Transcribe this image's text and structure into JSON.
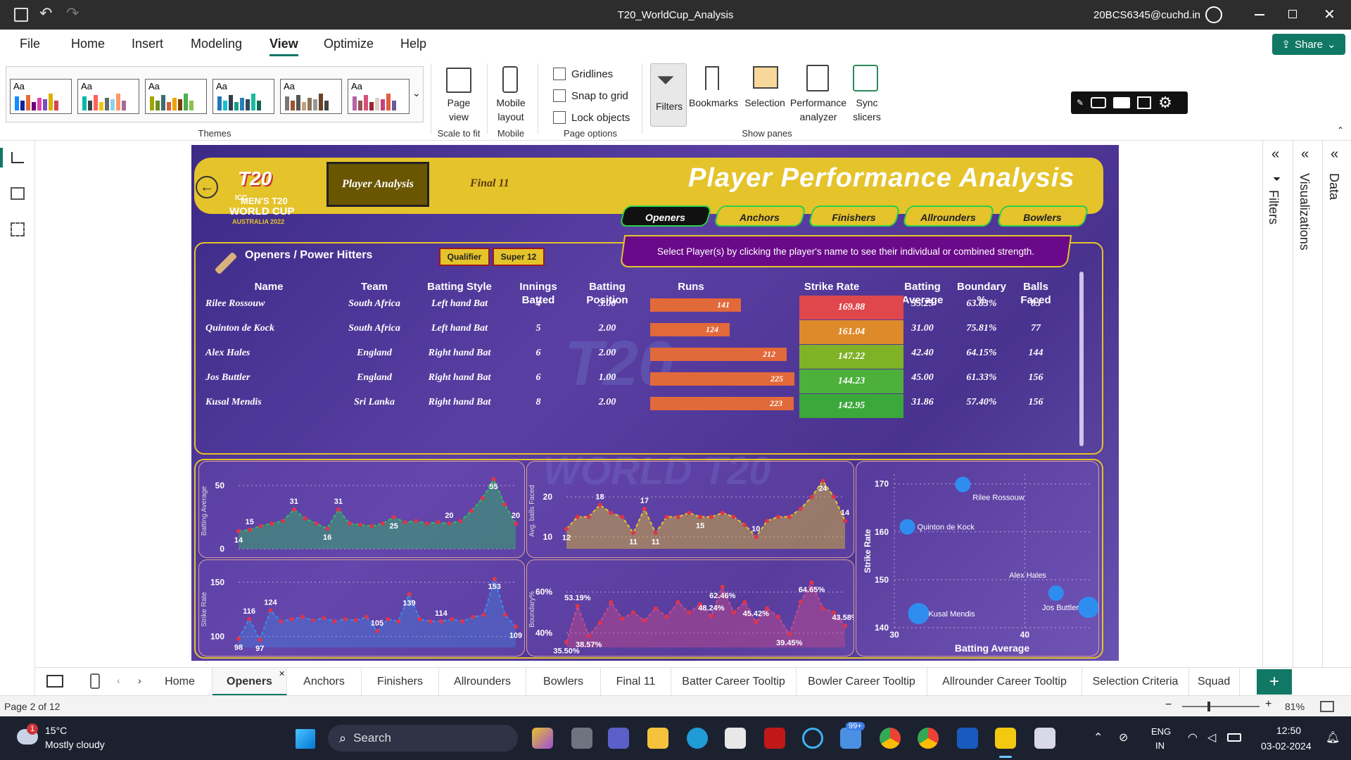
{
  "titlebar": {
    "title": "T20_WorldCup_Analysis",
    "user": "20BCS6345@cuchd.in"
  },
  "menu": {
    "items": [
      "File",
      "Home",
      "Insert",
      "Modeling",
      "View",
      "Optimize",
      "Help"
    ],
    "share": "Share"
  },
  "ribbon": {
    "themes_label": "Themes",
    "theme_sample": "Aa",
    "page_view": "Page view",
    "scale_to_fit": "Scale to fit",
    "mobile_layout": "Mobile layout",
    "mobile": "Mobile",
    "gridlines": "Gridlines",
    "snap_to_grid": "Snap to grid",
    "lock_objects": "Lock objects",
    "page_options": "Page options",
    "filters": "Filters",
    "bookmarks": "Bookmarks",
    "selection": "Selection",
    "performance_analyzer": "Performance analyzer",
    "sync_slicers": "Sync slicers",
    "show_panes": "Show panes"
  },
  "report": {
    "logo_t20": "T20",
    "logo_line1": "MEN'S T20",
    "logo_line2": "WORLD CUP",
    "logo_line3": "AUSTRALIA 2022",
    "logo_icc": "ICC",
    "btn_player_analysis": "Player Analysis",
    "btn_final11": "Final 11",
    "title": "Player Performance Analysis",
    "nav": [
      "Openers",
      "Anchors",
      "Finishers",
      "Allrounders",
      "Bowlers"
    ],
    "instruction": "Select Player(s) by clicking the player's name to see their individual or combined strength.",
    "section_title": "Openers / Power Hitters",
    "slicers": [
      "Qualifier",
      "Super 12"
    ],
    "columns": [
      "Name",
      "Team",
      "Batting Style",
      "Innings Batted",
      "Batting Position",
      "Runs",
      "Strike Rate",
      "Batting Average",
      "Boundary %",
      "Balls Faced"
    ],
    "rows": [
      {
        "name": "Rilee Rossouw",
        "team": "South Africa",
        "style": "Left hand Bat",
        "innings": "4",
        "position": "3.00",
        "runs": 141,
        "sr": "169.88",
        "avg": "35.25",
        "boundary": "63.83%",
        "balls": "83",
        "src": "#e0474c"
      },
      {
        "name": "Quinton de Kock",
        "team": "South Africa",
        "style": "Left hand Bat",
        "innings": "5",
        "position": "2.00",
        "runs": 124,
        "sr": "161.04",
        "avg": "31.00",
        "boundary": "75.81%",
        "balls": "77",
        "src": "#de8a2a"
      },
      {
        "name": "Alex Hales",
        "team": "England",
        "style": "Right hand Bat",
        "innings": "6",
        "position": "2.00",
        "runs": 212,
        "sr": "147.22",
        "avg": "42.40",
        "boundary": "64.15%",
        "balls": "144",
        "src": "#7fb227"
      },
      {
        "name": "Jos Buttler",
        "team": "England",
        "style": "Right hand Bat",
        "innings": "6",
        "position": "1.00",
        "runs": 225,
        "sr": "144.23",
        "avg": "45.00",
        "boundary": "61.33%",
        "balls": "156",
        "src": "#4cb03a"
      },
      {
        "name": "Kusal Mendis",
        "team": "Sri Lanka",
        "style": "Right hand Bat",
        "innings": "8",
        "position": "2.00",
        "runs": 223,
        "sr": "142.95",
        "avg": "31.86",
        "boundary": "57.40%",
        "balls": "156",
        "src": "#3aa83a"
      }
    ]
  },
  "chart_data": [
    {
      "type": "area",
      "ylabel": "Batting Average",
      "yticks": [
        0,
        50
      ],
      "ylim": [
        0,
        60
      ],
      "values": [
        14,
        15,
        18,
        20,
        22,
        31,
        24,
        20,
        16,
        31,
        20,
        19,
        18,
        20,
        25,
        21,
        22,
        20,
        21,
        20,
        22,
        30,
        40,
        55,
        35,
        20
      ],
      "labels": {
        "0": "14",
        "1": "15",
        "5": "31",
        "8": "16",
        "9": "31",
        "14": "25",
        "19": "20",
        "23": "55",
        "25": "20"
      },
      "color": "#2bbf5a"
    },
    {
      "type": "area",
      "ylabel": "Avg. balls Faced",
      "yticks": [
        10,
        20
      ],
      "ylim": [
        7,
        26
      ],
      "values": [
        12,
        15,
        15,
        18,
        16,
        15,
        11,
        17,
        11,
        15,
        15,
        16,
        15,
        15,
        16,
        15,
        13,
        10,
        14,
        15,
        15,
        17,
        20,
        24,
        20,
        14
      ],
      "labels": {
        "0": "12",
        "3": "18",
        "6": "11",
        "7": "17",
        "8": "11",
        "12": "15",
        "17": "10",
        "23": "24",
        "25": "14"
      },
      "color": "#e5c32b"
    },
    {
      "type": "line",
      "ylabel": "Strike Rate",
      "yticks": [
        100,
        150
      ],
      "ylim": [
        90,
        160
      ],
      "values": [
        98,
        116,
        97,
        124,
        114,
        116,
        118,
        115,
        117,
        114,
        116,
        115,
        118,
        105,
        116,
        114,
        139,
        116,
        114,
        114,
        116,
        114,
        118,
        120,
        153,
        120,
        109
      ],
      "labels": {
        "0": "98",
        "1": "116",
        "2": "97",
        "3": "124",
        "13": "105",
        "16": "139",
        "19": "114",
        "24": "153",
        "26": "109"
      },
      "color": "#3b8ce8"
    },
    {
      "type": "area",
      "ylabel": "Boundary%",
      "yticks": [
        "40%",
        "60%"
      ],
      "ylim": [
        33,
        70
      ],
      "values": [
        35.5,
        53.19,
        38.57,
        45,
        55,
        47,
        50,
        46,
        52,
        48,
        55,
        50,
        54,
        48.24,
        62.46,
        50,
        55,
        45.42,
        52,
        48,
        39.45,
        55,
        64.65,
        52,
        50,
        43.58
      ],
      "labels": {
        "0": "35.50%",
        "1": "53.19%",
        "2": "38.57%",
        "13": "48.24%",
        "14": "62.46%",
        "17": "45.42%",
        "20": "39.45%",
        "22": "64.65%",
        "25": "43.58%"
      },
      "color": "#c84a8a"
    },
    {
      "type": "scatter",
      "xlabel": "Batting Average",
      "ylabel": "Strike Rate",
      "xticks": [
        30,
        40
      ],
      "yticks": [
        140,
        150,
        160,
        170
      ],
      "xlim": [
        30,
        45
      ],
      "ylim": [
        140,
        172
      ],
      "points": [
        {
          "name": "Rilee Rossouw",
          "x": 35.25,
          "y": 169.88
        },
        {
          "name": "Quinton de Kock",
          "x": 31.0,
          "y": 161.04
        },
        {
          "name": "Alex Hales",
          "x": 42.4,
          "y": 147.22
        },
        {
          "name": "Jos Buttler",
          "x": 45.0,
          "y": 144.23
        },
        {
          "name": "Kusal Mendis",
          "x": 31.86,
          "y": 142.95
        }
      ],
      "color": "#2f8df0"
    }
  ],
  "rightpanes": {
    "filters": "Filters",
    "visualizations": "Visualizations",
    "data": "Data"
  },
  "pagetabs": [
    "Home",
    "Openers",
    "Anchors",
    "Finishers",
    "Allrounders",
    "Bowlers",
    "Final 11",
    "Batter Career Tooltip",
    "Bowler Career Tooltip",
    "Allrounder Career Tooltip",
    "Selection Criteria",
    "Squad"
  ],
  "status": {
    "page": "Page 2 of 12",
    "zoom": "81%"
  },
  "taskbar": {
    "temp": "15°C",
    "weather": "Mostly cloudy",
    "weather_badge": "1",
    "search": "Search",
    "badge99": "99+",
    "lang1": "ENG",
    "lang2": "IN",
    "time": "12:50",
    "date": "03-02-2024"
  }
}
